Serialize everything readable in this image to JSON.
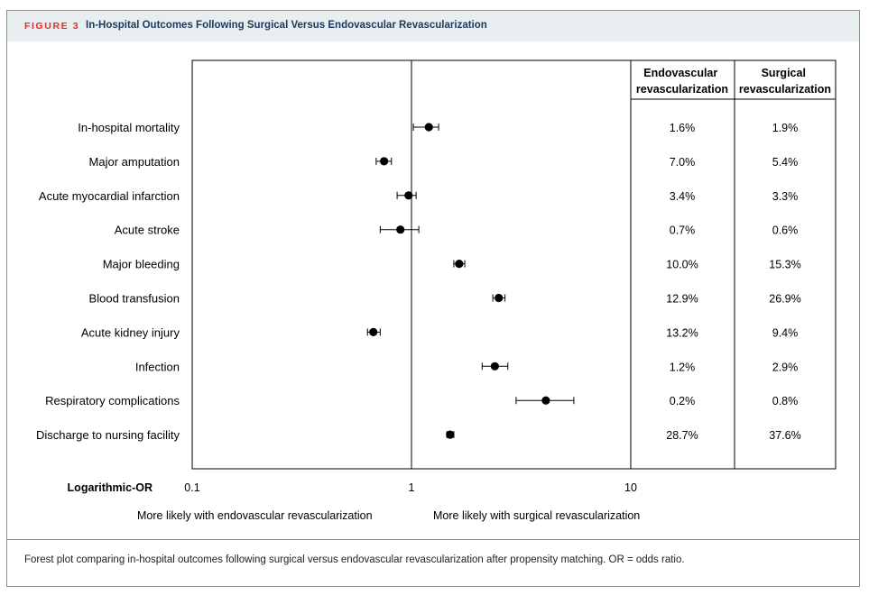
{
  "figure": {
    "label": "FIGURE 3",
    "title": "In-Hospital Outcomes Following Surgical Versus Endovascular Revascularization",
    "caption": "Forest plot comparing in-hospital outcomes following surgical versus endovascular revascularization after propensity matching. OR = odds ratio."
  },
  "colors": {
    "label_red": "#d6322f",
    "title_navy": "#1b3a5c",
    "header_bg": "#e8eef0"
  },
  "chart_data": {
    "type": "forest",
    "xlabel": "Logarithmic-OR",
    "xscale": "log",
    "xlim": [
      0.1,
      10
    ],
    "xticks": [
      {
        "value": 0.1,
        "label": "0.1"
      },
      {
        "value": 1,
        "label": "1"
      },
      {
        "value": 10,
        "label": "10"
      }
    ],
    "reference_line": 1,
    "direction_labels": {
      "left": "More likely with endovascular revascularization",
      "right": "More likely with surgical revascularization"
    },
    "table_columns": [
      "Endovascular revascularization",
      "Surgical revascularization"
    ],
    "rows": [
      {
        "label": "In-hospital mortality",
        "or": 1.2,
        "ci": [
          1.02,
          1.33
        ],
        "endovascular": "1.6%",
        "surgical": "1.9%"
      },
      {
        "label": "Major amputation",
        "or": 0.75,
        "ci": [
          0.69,
          0.81
        ],
        "endovascular": "7.0%",
        "surgical": "5.4%"
      },
      {
        "label": "Acute myocardial infarction",
        "or": 0.97,
        "ci": [
          0.86,
          1.05
        ],
        "endovascular": "3.4%",
        "surgical": "3.3%"
      },
      {
        "label": "Acute stroke",
        "or": 0.89,
        "ci": [
          0.72,
          1.08
        ],
        "endovascular": "0.7%",
        "surgical": "0.6%"
      },
      {
        "label": "Major bleeding",
        "or": 1.65,
        "ci": [
          1.56,
          1.75
        ],
        "endovascular": "10.0%",
        "surgical": "15.3%"
      },
      {
        "label": "Blood transfusion",
        "or": 2.5,
        "ci": [
          2.35,
          2.67
        ],
        "endovascular": "12.9%",
        "surgical": "26.9%"
      },
      {
        "label": "Acute kidney injury",
        "or": 0.67,
        "ci": [
          0.63,
          0.72
        ],
        "endovascular": "13.2%",
        "surgical": "9.4%"
      },
      {
        "label": "Infection",
        "or": 2.4,
        "ci": [
          2.1,
          2.75
        ],
        "endovascular": "1.2%",
        "surgical": "2.9%"
      },
      {
        "label": "Respiratory complications",
        "or": 4.1,
        "ci": [
          3.0,
          5.5
        ],
        "endovascular": "0.2%",
        "surgical": "0.8%"
      },
      {
        "label": "Discharge to nursing facility",
        "or": 1.5,
        "ci": [
          1.45,
          1.56
        ],
        "endovascular": "28.7%",
        "surgical": "37.6%"
      }
    ]
  }
}
